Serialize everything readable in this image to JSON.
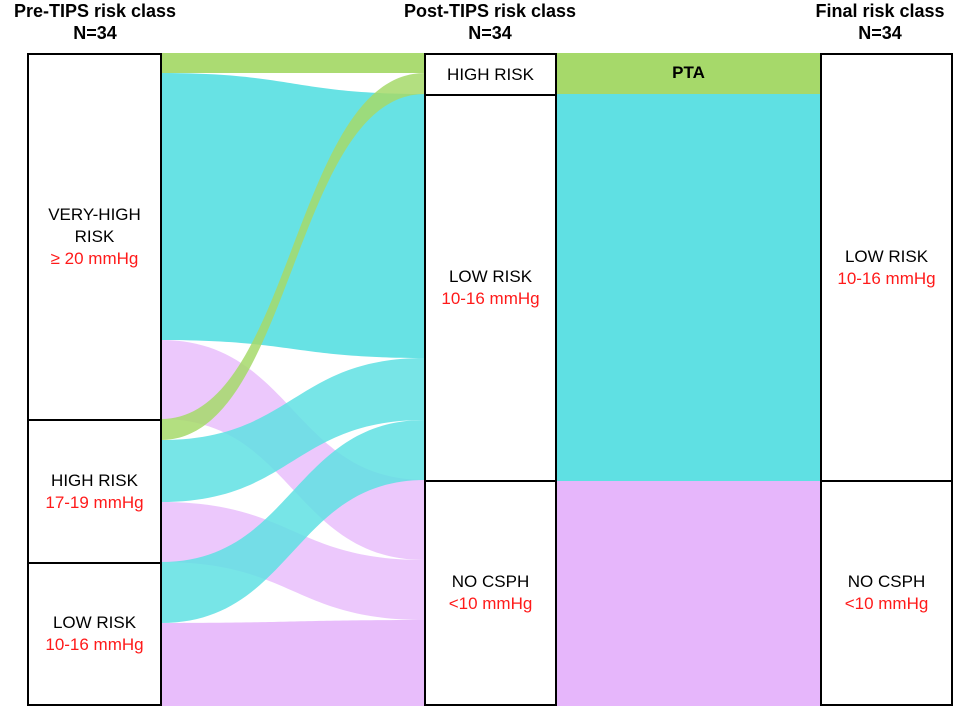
{
  "headers": {
    "pre": {
      "title": "Pre-TIPS risk class",
      "n": "N=34"
    },
    "post": {
      "title": "Post-TIPS risk class",
      "n": "N=34"
    },
    "final": {
      "title": "Final risk class",
      "n": "N=34"
    }
  },
  "pre_nodes": [
    {
      "label": "VERY-HIGH\nRISK",
      "sub": "≥ 20 mmHg"
    },
    {
      "label": "HIGH RISK",
      "sub": "17-19 mmHg"
    },
    {
      "label": "LOW RISK",
      "sub": "10-16 mmHg"
    }
  ],
  "post_nodes": [
    {
      "label": "HIGH RISK",
      "sub": ""
    },
    {
      "label": "LOW RISK",
      "sub": "10-16 mmHg"
    },
    {
      "label": "NO CSPH",
      "sub": "<10 mmHg"
    }
  ],
  "final_nodes": [
    {
      "label": "LOW RISK",
      "sub": "10-16 mmHg"
    },
    {
      "label": "NO CSPH",
      "sub": "<10 mmHg"
    }
  ],
  "pta_label": "PTA",
  "colors": {
    "green": "#a6d96a",
    "cyan": "#5fe0e3",
    "violet": "#e6b6fb",
    "teal": "#2fd39a"
  }
}
